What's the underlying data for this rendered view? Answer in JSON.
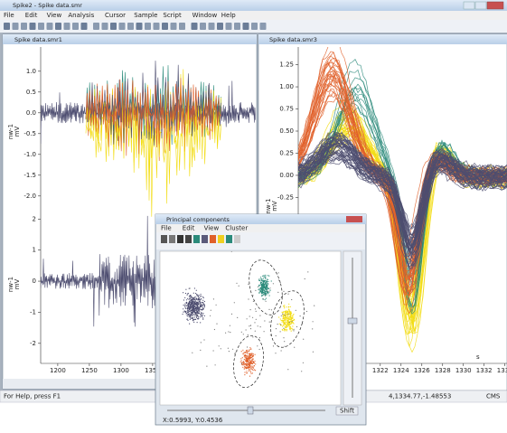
{
  "main_window": {
    "title": "Spike2 - Spike data.smr",
    "menu": [
      "File",
      "Edit",
      "View",
      "Analysis",
      "Cursor",
      "Sample",
      "Script",
      "Window",
      "Help"
    ]
  },
  "left_view": {
    "title": "Spike data.smr1",
    "xlim": [
      1173,
      1513
    ],
    "xticks": [
      1200,
      1250,
      1300,
      1350
    ],
    "channels": [
      {
        "label": "nw-1",
        "unit": "mV",
        "ylim": [
          -2.2,
          1.3
        ],
        "yticks": [
          {
            "value": 1,
            "label": "1.0"
          },
          0.5,
          {
            "value": 0,
            "label": "0.0"
          },
          -0.5,
          {
            "value": -1,
            "label": "-1.0"
          },
          -1.5,
          {
            "value": -2,
            "label": "-2.0"
          }
        ]
      },
      {
        "label": "nw-1",
        "unit": "mV",
        "ylim": [
          -2.5,
          2.3
        ],
        "yticks": [
          2,
          1,
          0,
          -1,
          -2
        ]
      }
    ]
  },
  "right_view": {
    "title": "Spike data.smr3",
    "label": "nw-1",
    "unit": "mV",
    "x_unit": "s",
    "xlim": [
      1314.1,
      1334.2
    ],
    "ylim": [
      -2.125,
      1.45
    ],
    "xticks": [
      1322,
      1324,
      1326,
      1328,
      1330,
      1332,
      1334
    ],
    "yticks": [
      1.25,
      {
        "value": 1,
        "label": "1.00"
      },
      0.75,
      {
        "value": 0.5,
        "label": "0.50"
      },
      0.25,
      {
        "value": 0,
        "label": "0.00"
      },
      -0.25
    ]
  },
  "cluster_dialog": {
    "title": "Principal components",
    "menu": [
      "File",
      "Edit",
      "View",
      "Cluster"
    ],
    "status": "X:0.5993, Y:0.4536",
    "shift_button": "Shift"
  },
  "status_bar": {
    "help": "For Help, press F1",
    "position": "4,1334.77,-1.48553",
    "mode": "CMS"
  }
}
